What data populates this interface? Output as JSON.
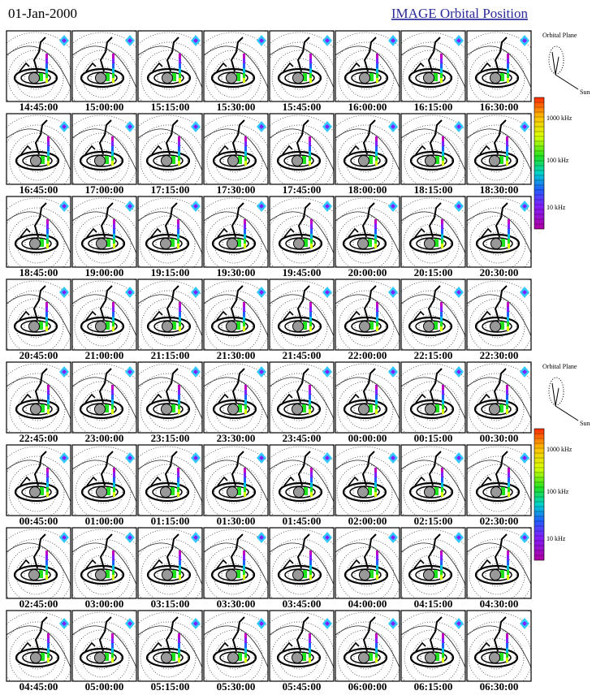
{
  "header": {
    "date": "01-Jan-2000",
    "title": "IMAGE Orbital Position"
  },
  "panels": [
    "14:45:00",
    "15:00:00",
    "15:15:00",
    "15:30:00",
    "15:45:00",
    "16:00:00",
    "16:15:00",
    "16:30:00",
    "16:45:00",
    "17:00:00",
    "17:15:00",
    "17:30:00",
    "17:45:00",
    "18:00:00",
    "18:15:00",
    "18:30:00",
    "18:45:00",
    "19:00:00",
    "19:15:00",
    "19:30:00",
    "19:45:00",
    "20:00:00",
    "20:15:00",
    "20:30:00",
    "20:45:00",
    "21:00:00",
    "21:15:00",
    "21:30:00",
    "21:45:00",
    "22:00:00",
    "22:15:00",
    "22:30:00",
    "22:45:00",
    "23:00:00",
    "23:15:00",
    "23:30:00",
    "23:45:00",
    "00:00:00",
    "00:15:00",
    "00:30:00",
    "00:45:00",
    "01:00:00",
    "01:15:00",
    "01:30:00",
    "01:45:00",
    "02:00:00",
    "02:15:00",
    "02:30:00",
    "02:45:00",
    "03:00:00",
    "03:15:00",
    "03:30:00",
    "03:45:00",
    "04:00:00",
    "04:15:00",
    "04:30:00",
    "04:45:00",
    "05:00:00",
    "05:15:00",
    "05:30:00",
    "05:45:00",
    "06:00:00",
    "06:15:00",
    "06:30:00"
  ],
  "legends": [
    {
      "orbital_plane": "Orbital Plane",
      "sun": "Sun",
      "frequency_labels": [
        "1000 kHz",
        "100 kHz",
        "10 kHz"
      ]
    },
    {
      "orbital_plane": "Orbital Plane",
      "sun": "Sun",
      "frequency_labels": [
        "1000 kHz",
        "100 kHz",
        "10 kHz"
      ]
    }
  ]
}
